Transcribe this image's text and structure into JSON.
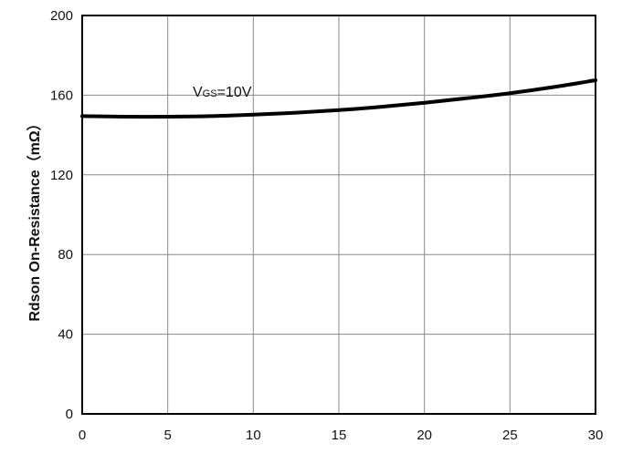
{
  "chart_data": {
    "type": "line",
    "title": "",
    "xlabel": "",
    "ylabel": "Rdson On-Resistance（mΩ）",
    "xlim": [
      0,
      30
    ],
    "ylim": [
      0,
      200
    ],
    "x_ticks": [
      0,
      5,
      10,
      15,
      20,
      25,
      30
    ],
    "y_ticks": [
      0,
      40,
      80,
      120,
      160,
      200
    ],
    "grid": true,
    "legend": "none",
    "annotation": {
      "main": "V",
      "subscript": "GS",
      "suffix": "=10V"
    },
    "series": [
      {
        "color": "#000000",
        "x": [
          0,
          2.5,
          5,
          7.5,
          10,
          12.5,
          15,
          17.5,
          20,
          22.5,
          25,
          27.5,
          30
        ],
        "y": [
          149.5,
          149.2,
          149.2,
          149.5,
          150.2,
          151.2,
          152.5,
          154.2,
          156.2,
          158.5,
          161,
          164,
          167.5
        ]
      }
    ]
  }
}
